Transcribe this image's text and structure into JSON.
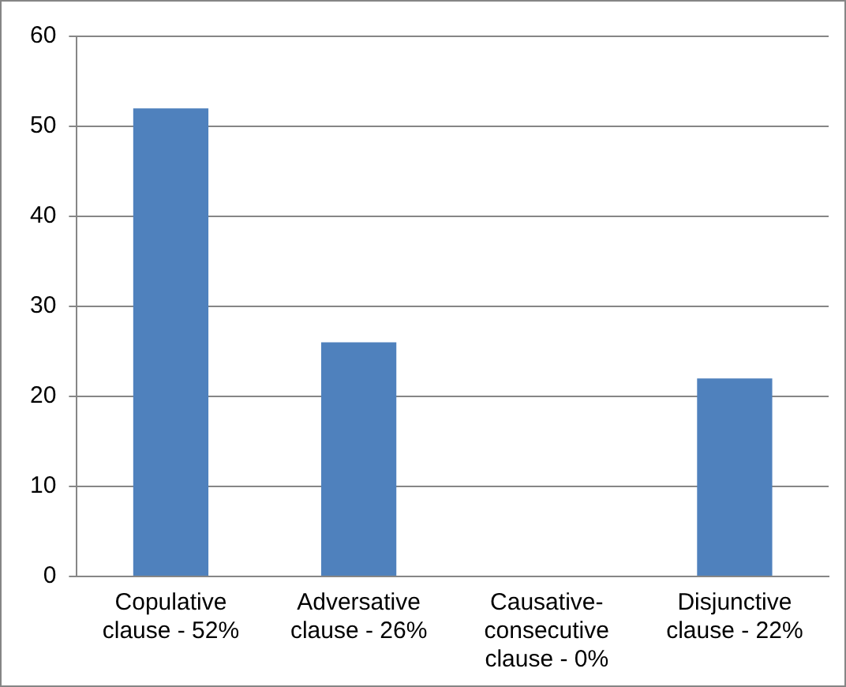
{
  "chart_data": {
    "type": "bar",
    "categories": [
      "Copulative clause - 52%",
      "Adversative clause - 26%",
      "Causative-consecutive clause - 0%",
      "Disjunctive clause - 22%"
    ],
    "values": [
      52,
      26,
      0,
      22
    ],
    "color": "#4f81bd",
    "ylim": [
      0,
      60
    ],
    "yticks": [
      0,
      10,
      20,
      30,
      40,
      50,
      60
    ],
    "grid": "y",
    "legend": false
  }
}
